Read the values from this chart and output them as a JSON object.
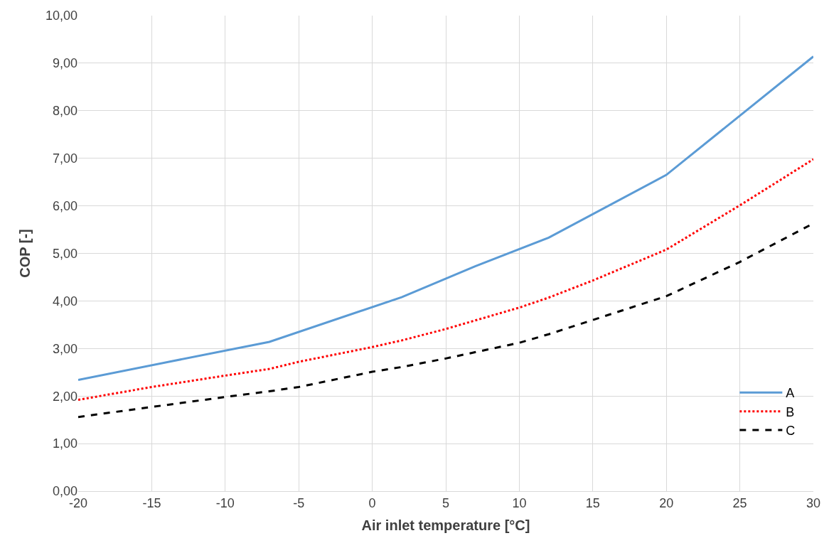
{
  "chart_data": {
    "type": "line",
    "xlabel": "Air inlet temperature [°C]",
    "ylabel": "COP [-]",
    "xlim": [
      -20,
      30
    ],
    "xticks": [
      -20,
      -15,
      -10,
      -5,
      0,
      5,
      10,
      15,
      20,
      25,
      30
    ],
    "ylim": [
      0,
      10
    ],
    "yticks": [
      {
        "value": 0,
        "label": "0,00"
      },
      {
        "value": 1,
        "label": "1,00"
      },
      {
        "value": 2,
        "label": "2,00"
      },
      {
        "value": 3,
        "label": "3,00"
      },
      {
        "value": 4,
        "label": "4,00"
      },
      {
        "value": 5,
        "label": "5,00"
      },
      {
        "value": 6,
        "label": "6,00"
      },
      {
        "value": 7,
        "label": "7,00"
      },
      {
        "value": 8,
        "label": "8,00"
      },
      {
        "value": 9,
        "label": "9,00"
      },
      {
        "value": 10,
        "label": "10,00"
      }
    ],
    "grid": true,
    "legend": "bottom right",
    "marker": "none",
    "series": [
      {
        "name": "A",
        "color": "#5b9bd5",
        "line_style": "solid",
        "x": [
          -20,
          -7,
          2,
          7,
          12,
          20,
          30
        ],
        "values": [
          2.34,
          3.14,
          4.08,
          4.73,
          5.33,
          6.65,
          9.14
        ]
      },
      {
        "name": "B",
        "color": "#ff0000",
        "line_style": "dotted",
        "x": [
          -20,
          -15,
          -10,
          -7,
          -5,
          0,
          2,
          5,
          10,
          12,
          15,
          20,
          25,
          30
        ],
        "values": [
          1.92,
          2.19,
          2.43,
          2.57,
          2.72,
          3.03,
          3.17,
          3.41,
          3.86,
          4.07,
          4.43,
          5.08,
          6.01,
          6.98
        ]
      },
      {
        "name": "C",
        "color": "#000000",
        "line_style": "dashed",
        "x": [
          -20,
          -15,
          -10,
          -7,
          -5,
          0,
          2,
          5,
          10,
          12,
          15,
          20,
          25,
          30
        ],
        "values": [
          1.56,
          1.77,
          1.98,
          2.1,
          2.19,
          2.51,
          2.61,
          2.79,
          3.12,
          3.3,
          3.6,
          4.1,
          4.82,
          5.63
        ]
      }
    ]
  }
}
